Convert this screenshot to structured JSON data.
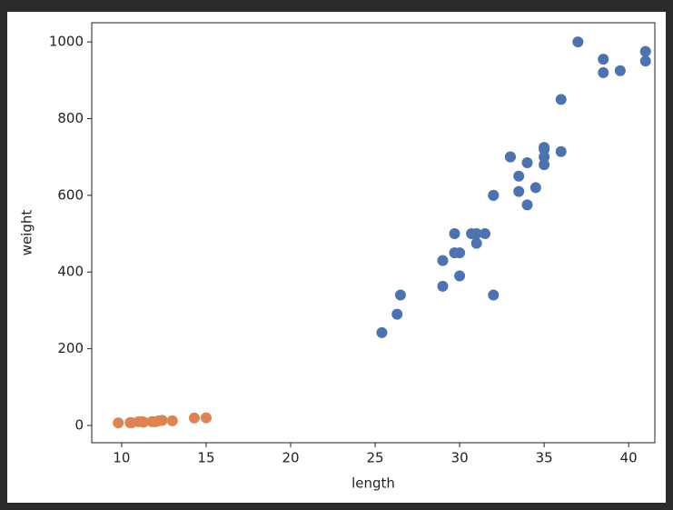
{
  "chart_data": {
    "type": "scatter",
    "xlabel": "length",
    "ylabel": "weight",
    "xlim": [
      8.23,
      41.55
    ],
    "ylim": [
      -45,
      1050
    ],
    "xticks": [
      10,
      15,
      20,
      25,
      30,
      35,
      40
    ],
    "yticks": [
      0,
      200,
      400,
      600,
      800,
      1000
    ],
    "series": [
      {
        "color": "#4c72b0",
        "x": [
          25.4,
          26.3,
          26.5,
          29.0,
          29.0,
          29.7,
          29.7,
          30.0,
          30.0,
          30.7,
          31.0,
          31.0,
          31.5,
          32.0,
          32.0,
          32.0,
          33.0,
          33.0,
          33.5,
          33.5,
          34.0,
          34.0,
          34.5,
          35.0,
          35.0,
          35.0,
          35.0,
          36.0,
          36.0,
          37.0,
          38.5,
          38.5,
          39.5,
          41.0,
          41.0
        ],
        "values": [
          242,
          290,
          340,
          363,
          430,
          450,
          500,
          390,
          450,
          500,
          475,
          500,
          500,
          340,
          600,
          600,
          700,
          700,
          610,
          650,
          575,
          685,
          620,
          680,
          700,
          725,
          720,
          714,
          850,
          1000,
          920,
          955,
          925,
          975,
          950
        ]
      },
      {
        "color": "#dd8452",
        "x": [
          9.8,
          10.5,
          10.6,
          11.0,
          11.2,
          11.3,
          11.8,
          11.8,
          12.0,
          12.2,
          12.4,
          13.0,
          14.3,
          15.0
        ],
        "values": [
          6.7,
          7.5,
          7.0,
          9.7,
          9.8,
          8.7,
          10.0,
          9.9,
          9.8,
          12.2,
          13.4,
          12.2,
          19.7,
          19.9
        ]
      }
    ]
  }
}
